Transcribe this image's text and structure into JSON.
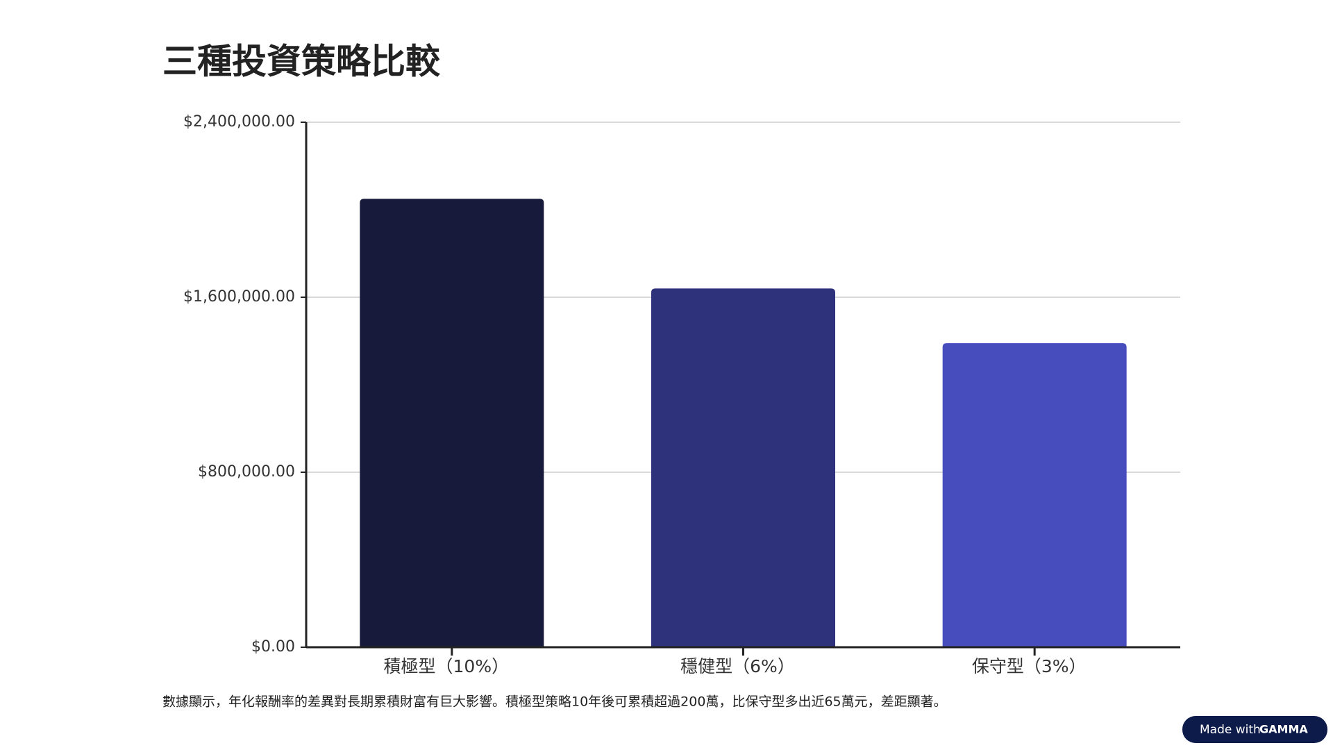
{
  "chart_data": {
    "type": "bar",
    "title": "三種投資策略比較",
    "categories": [
      "積極型（10%）",
      "穩健型（6%）",
      "保守型（3%）"
    ],
    "values": [
      2050000,
      1640000,
      1390000
    ],
    "colors": [
      "#171a3a",
      "#2e327a",
      "#474dbd"
    ],
    "ylim": [
      0,
      2400000
    ],
    "yticks": [
      {
        "value": 0,
        "label": "$0.00"
      },
      {
        "value": 800000,
        "label": "$800,000.00"
      },
      {
        "value": 1600000,
        "label": "$1,600,000.00"
      },
      {
        "value": 2400000,
        "label": "$2,400,000.00"
      }
    ],
    "grid": true,
    "caption": "數據顯示，年化報酬率的差異對長期累積財富有巨大影響。積極型策略10年後可累積超過200萬，比保守型多出近65萬元，差距顯著。"
  },
  "badge": {
    "prefix": "Made with",
    "brand": "GAMMA"
  }
}
